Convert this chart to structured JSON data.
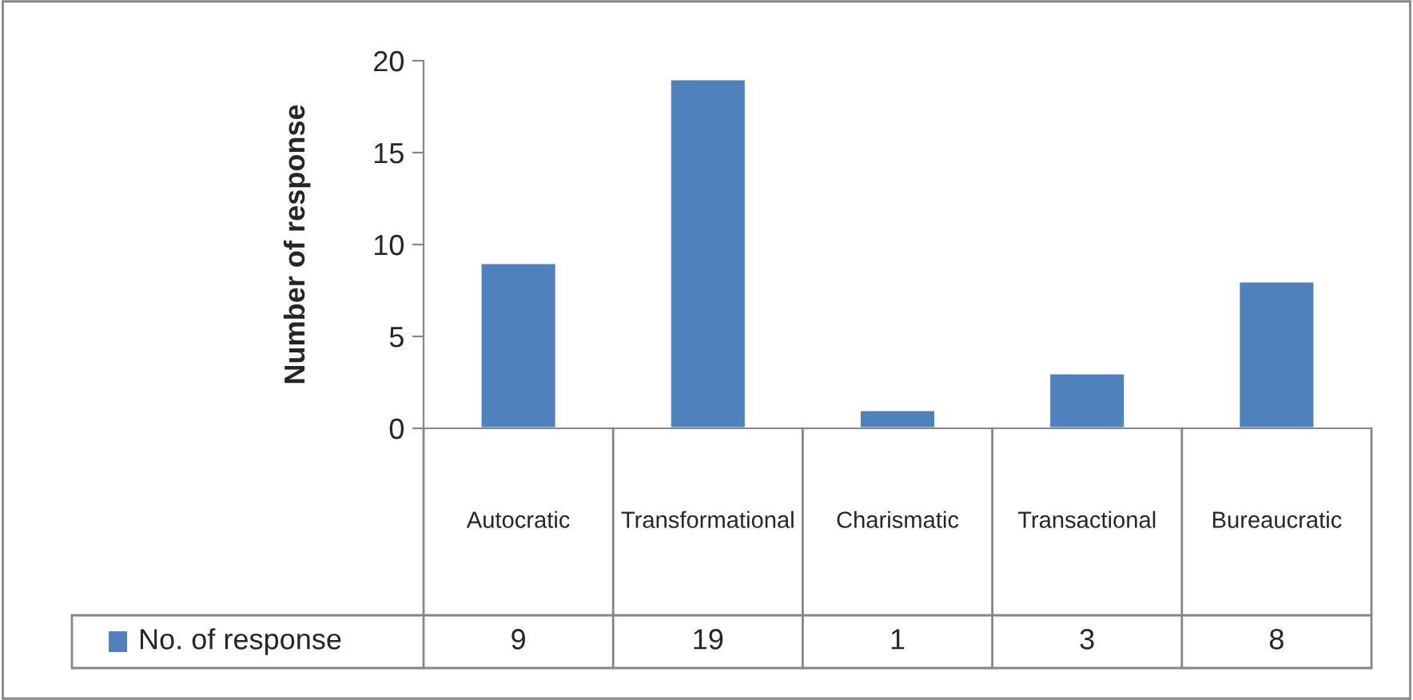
{
  "chart_data": {
    "type": "bar",
    "ylabel": "Number of response",
    "categories": [
      "Autocratic",
      "Transformational",
      "Charismatic",
      "Transactional",
      "Bureaucratic"
    ],
    "series": [
      {
        "name": "No. of response",
        "color": "#4f81bd",
        "values": [
          9,
          19,
          1,
          3,
          8
        ]
      }
    ],
    "ylim": [
      0,
      20
    ],
    "yticks": [
      0,
      5,
      10,
      15,
      20
    ],
    "grid": false,
    "legend": "bottom",
    "data_labels": true
  }
}
